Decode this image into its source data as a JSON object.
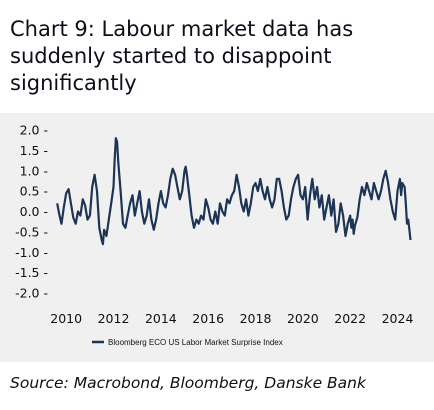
{
  "title": "Chart 9:  Labour market data has suddenly started to disappoint significantly",
  "source": "Source: Macrobond, Bloomberg, Danske Bank",
  "colors": {
    "series": "#1c3456",
    "panel": "#f0f0f0"
  },
  "chart_data": {
    "type": "line",
    "title": "",
    "xlabel": "",
    "ylabel": "",
    "xlim": [
      2009.4,
      2024.95
    ],
    "ylim": [
      -2.0,
      2.0
    ],
    "x_ticks": [
      2010,
      2012,
      2014,
      2016,
      2018,
      2020,
      2022,
      2024
    ],
    "x_tick_labels": [
      "2010",
      "2012",
      "2014",
      "2016",
      "2018",
      "2020",
      "2022",
      "2024"
    ],
    "y_ticks": [
      2.0,
      1.5,
      1.0,
      0.5,
      0.0,
      -0.5,
      -1.0,
      -1.5,
      -2.0
    ],
    "y_tick_labels": [
      "2.0 -",
      "1.5 -",
      "1.0 -",
      "0.5 -",
      "0.0 -",
      "-0.5 -",
      "-1.0 -",
      "-1.5 -",
      "-2.0 -"
    ],
    "grid": false,
    "legend_position": "bottom",
    "series": [
      {
        "name": "Bloomberg ECO US Labor Market Surprise Index",
        "color": "#1c3456",
        "points": [
          [
            2009.62,
            0.2
          ],
          [
            2009.7,
            -0.05
          ],
          [
            2009.8,
            -0.3
          ],
          [
            2009.9,
            0.1
          ],
          [
            2010.0,
            0.45
          ],
          [
            2010.1,
            0.55
          ],
          [
            2010.2,
            0.2
          ],
          [
            2010.3,
            -0.15
          ],
          [
            2010.4,
            -0.3
          ],
          [
            2010.5,
            0.0
          ],
          [
            2010.6,
            -0.1
          ],
          [
            2010.7,
            0.3
          ],
          [
            2010.8,
            0.15
          ],
          [
            2010.9,
            -0.2
          ],
          [
            2011.0,
            -0.1
          ],
          [
            2011.1,
            0.6
          ],
          [
            2011.2,
            0.9
          ],
          [
            2011.3,
            0.5
          ],
          [
            2011.4,
            -0.4
          ],
          [
            2011.5,
            -0.7
          ],
          [
            2011.55,
            -0.8
          ],
          [
            2011.6,
            -0.45
          ],
          [
            2011.7,
            -0.6
          ],
          [
            2011.8,
            -0.2
          ],
          [
            2011.9,
            0.2
          ],
          [
            2012.0,
            0.6
          ],
          [
            2012.05,
            1.3
          ],
          [
            2012.1,
            1.8
          ],
          [
            2012.15,
            1.7
          ],
          [
            2012.2,
            1.2
          ],
          [
            2012.3,
            0.5
          ],
          [
            2012.4,
            -0.3
          ],
          [
            2012.5,
            -0.4
          ],
          [
            2012.6,
            -0.1
          ],
          [
            2012.7,
            0.2
          ],
          [
            2012.8,
            0.4
          ],
          [
            2012.9,
            -0.1
          ],
          [
            2013.0,
            0.2
          ],
          [
            2013.1,
            0.5
          ],
          [
            2013.2,
            0.0
          ],
          [
            2013.3,
            -0.3
          ],
          [
            2013.4,
            -0.1
          ],
          [
            2013.5,
            0.3
          ],
          [
            2013.6,
            -0.2
          ],
          [
            2013.7,
            -0.45
          ],
          [
            2013.8,
            -0.2
          ],
          [
            2013.9,
            0.2
          ],
          [
            2014.0,
            0.5
          ],
          [
            2014.1,
            0.2
          ],
          [
            2014.2,
            0.1
          ],
          [
            2014.3,
            0.4
          ],
          [
            2014.4,
            0.8
          ],
          [
            2014.5,
            1.05
          ],
          [
            2014.6,
            0.9
          ],
          [
            2014.7,
            0.6
          ],
          [
            2014.8,
            0.3
          ],
          [
            2014.9,
            0.5
          ],
          [
            2015.0,
            1.0
          ],
          [
            2015.05,
            1.1
          ],
          [
            2015.1,
            0.9
          ],
          [
            2015.2,
            0.4
          ],
          [
            2015.3,
            -0.1
          ],
          [
            2015.4,
            -0.4
          ],
          [
            2015.5,
            -0.2
          ],
          [
            2015.6,
            -0.3
          ],
          [
            2015.7,
            -0.1
          ],
          [
            2015.8,
            -0.2
          ],
          [
            2015.9,
            0.3
          ],
          [
            2016.0,
            0.1
          ],
          [
            2016.1,
            -0.2
          ],
          [
            2016.2,
            -0.3
          ],
          [
            2016.3,
            0.0
          ],
          [
            2016.4,
            -0.3
          ],
          [
            2016.5,
            0.2
          ],
          [
            2016.6,
            0.0
          ],
          [
            2016.7,
            -0.1
          ],
          [
            2016.8,
            0.3
          ],
          [
            2016.9,
            0.2
          ],
          [
            2017.0,
            0.4
          ],
          [
            2017.1,
            0.5
          ],
          [
            2017.2,
            0.9
          ],
          [
            2017.3,
            0.6
          ],
          [
            2017.4,
            0.2
          ],
          [
            2017.5,
            0.0
          ],
          [
            2017.6,
            0.3
          ],
          [
            2017.7,
            -0.1
          ],
          [
            2017.8,
            0.2
          ],
          [
            2017.9,
            0.6
          ],
          [
            2018.0,
            0.7
          ],
          [
            2018.1,
            0.5
          ],
          [
            2018.2,
            0.8
          ],
          [
            2018.3,
            0.5
          ],
          [
            2018.4,
            0.3
          ],
          [
            2018.5,
            0.6
          ],
          [
            2018.6,
            0.3
          ],
          [
            2018.7,
            0.1
          ],
          [
            2018.8,
            0.3
          ],
          [
            2018.9,
            0.8
          ],
          [
            2019.0,
            0.8
          ],
          [
            2019.1,
            0.5
          ],
          [
            2019.2,
            0.1
          ],
          [
            2019.3,
            -0.2
          ],
          [
            2019.4,
            -0.1
          ],
          [
            2019.5,
            0.3
          ],
          [
            2019.6,
            0.6
          ],
          [
            2019.7,
            0.8
          ],
          [
            2019.8,
            0.9
          ],
          [
            2019.9,
            0.4
          ],
          [
            2020.0,
            0.3
          ],
          [
            2020.1,
            0.6
          ],
          [
            2020.2,
            -0.2
          ],
          [
            2020.3,
            0.4
          ],
          [
            2020.4,
            0.8
          ],
          [
            2020.5,
            0.3
          ],
          [
            2020.6,
            0.6
          ],
          [
            2020.7,
            0.1
          ],
          [
            2020.8,
            0.4
          ],
          [
            2020.9,
            -0.2
          ],
          [
            2021.0,
            0.1
          ],
          [
            2021.1,
            0.4
          ],
          [
            2021.2,
            -0.1
          ],
          [
            2021.3,
            0.3
          ],
          [
            2021.4,
            -0.5
          ],
          [
            2021.5,
            -0.3
          ],
          [
            2021.6,
            0.2
          ],
          [
            2021.7,
            -0.1
          ],
          [
            2021.8,
            -0.6
          ],
          [
            2021.9,
            -0.3
          ],
          [
            2022.0,
            -0.1
          ],
          [
            2022.05,
            -0.4
          ],
          [
            2022.1,
            -0.2
          ],
          [
            2022.15,
            -0.55
          ],
          [
            2022.2,
            -0.35
          ],
          [
            2022.3,
            -0.15
          ],
          [
            2022.4,
            0.3
          ],
          [
            2022.5,
            0.6
          ],
          [
            2022.6,
            0.4
          ],
          [
            2022.7,
            0.7
          ],
          [
            2022.8,
            0.5
          ],
          [
            2022.9,
            0.3
          ],
          [
            2023.0,
            0.7
          ],
          [
            2023.1,
            0.5
          ],
          [
            2023.2,
            0.3
          ],
          [
            2023.3,
            0.5
          ],
          [
            2023.4,
            0.8
          ],
          [
            2023.5,
            1.0
          ],
          [
            2023.6,
            0.7
          ],
          [
            2023.7,
            0.3
          ],
          [
            2023.8,
            0.0
          ],
          [
            2023.9,
            -0.2
          ],
          [
            2024.0,
            0.5
          ],
          [
            2024.1,
            0.8
          ],
          [
            2024.15,
            0.4
          ],
          [
            2024.2,
            0.7
          ],
          [
            2024.3,
            0.6
          ],
          [
            2024.35,
            0.2
          ],
          [
            2024.4,
            -0.3
          ],
          [
            2024.45,
            -0.2
          ],
          [
            2024.5,
            -0.45
          ],
          [
            2024.55,
            -0.7
          ]
        ]
      }
    ]
  }
}
